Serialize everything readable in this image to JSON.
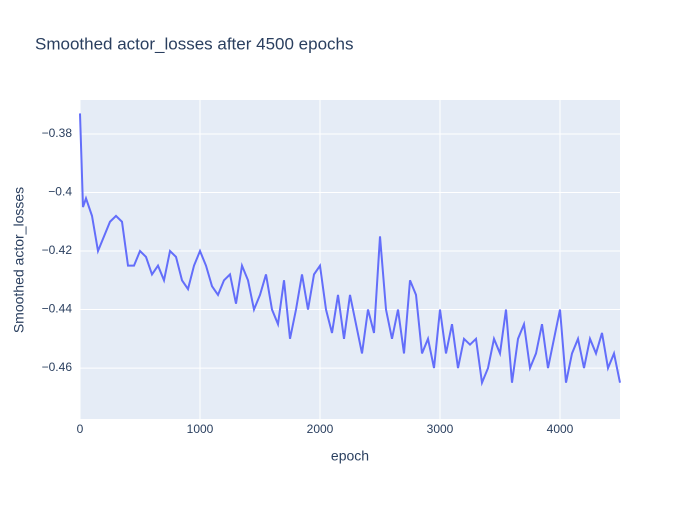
{
  "chart_data": {
    "type": "line",
    "title": "Smoothed actor_losses after 4500 epochs",
    "xlabel": "epoch",
    "ylabel": "Smoothed actor_losses",
    "x": [
      0,
      25,
      50,
      100,
      150,
      200,
      250,
      300,
      350,
      400,
      450,
      500,
      550,
      600,
      650,
      700,
      750,
      800,
      850,
      900,
      950,
      1000,
      1050,
      1100,
      1150,
      1200,
      1250,
      1300,
      1350,
      1400,
      1450,
      1500,
      1550,
      1600,
      1650,
      1700,
      1750,
      1800,
      1850,
      1900,
      1950,
      2000,
      2050,
      2100,
      2150,
      2200,
      2250,
      2300,
      2350,
      2400,
      2450,
      2500,
      2550,
      2600,
      2650,
      2700,
      2750,
      2800,
      2850,
      2900,
      2950,
      3000,
      3050,
      3100,
      3150,
      3200,
      3250,
      3300,
      3350,
      3400,
      3450,
      3500,
      3550,
      3600,
      3650,
      3700,
      3750,
      3800,
      3850,
      3900,
      3950,
      4000,
      4050,
      4100,
      4150,
      4200,
      4250,
      4300,
      4350,
      4400,
      4450,
      4500
    ],
    "series": [
      {
        "name": "Smoothed actor_losses",
        "color": "#636efa",
        "values": [
          -0.373,
          -0.405,
          -0.402,
          -0.408,
          -0.42,
          -0.415,
          -0.41,
          -0.408,
          -0.41,
          -0.425,
          -0.425,
          -0.42,
          -0.422,
          -0.428,
          -0.425,
          -0.43,
          -0.42,
          -0.422,
          -0.43,
          -0.433,
          -0.425,
          -0.42,
          -0.425,
          -0.432,
          -0.435,
          -0.43,
          -0.428,
          -0.438,
          -0.425,
          -0.43,
          -0.44,
          -0.435,
          -0.428,
          -0.44,
          -0.445,
          -0.43,
          -0.45,
          -0.44,
          -0.428,
          -0.44,
          -0.428,
          -0.425,
          -0.44,
          -0.448,
          -0.435,
          -0.45,
          -0.435,
          -0.445,
          -0.455,
          -0.44,
          -0.448,
          -0.415,
          -0.44,
          -0.45,
          -0.44,
          -0.455,
          -0.43,
          -0.435,
          -0.455,
          -0.45,
          -0.46,
          -0.44,
          -0.455,
          -0.445,
          -0.46,
          -0.45,
          -0.452,
          -0.45,
          -0.465,
          -0.46,
          -0.45,
          -0.455,
          -0.44,
          -0.465,
          -0.45,
          -0.445,
          -0.46,
          -0.455,
          -0.445,
          -0.46,
          -0.45,
          -0.44,
          -0.465,
          -0.455,
          -0.45,
          -0.46,
          -0.45,
          -0.455,
          -0.448,
          -0.46,
          -0.455,
          -0.465
        ]
      }
    ],
    "xlim": [
      0,
      4500
    ],
    "xticks": [
      0,
      1000,
      2000,
      3000,
      4000
    ],
    "ylim": [
      -0.4774,
      -0.3684
    ],
    "yticks": [
      {
        "value": -0.46,
        "label": "−0.46"
      },
      {
        "value": -0.44,
        "label": "−0.44"
      },
      {
        "value": -0.42,
        "label": "−0.42"
      },
      {
        "value": -0.4,
        "label": "−0.4"
      },
      {
        "value": -0.38,
        "label": "−0.38"
      }
    ],
    "grid": true
  }
}
